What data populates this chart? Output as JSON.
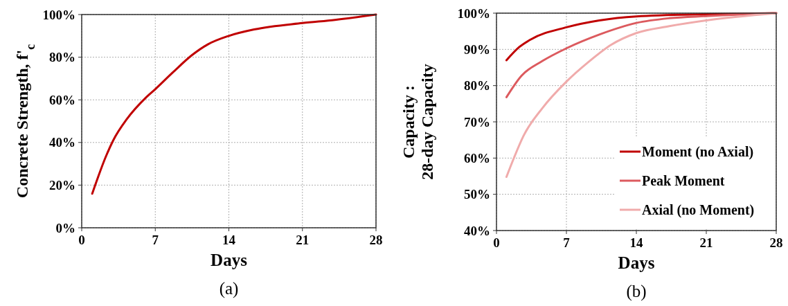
{
  "chart_data": [
    {
      "type": "line",
      "xlabel": "Days",
      "ylabel": "Concrete Strength, f'$_{c}$",
      "annotations": [
        "(a)"
      ],
      "xlim": [
        0,
        28
      ],
      "xticks": [
        0,
        7,
        14,
        21,
        28
      ],
      "ylim": [
        0,
        100
      ],
      "yticks": [
        {
          "value": 0,
          "label": "0%"
        },
        {
          "value": 20,
          "label": "20%"
        },
        {
          "value": 40,
          "label": "40%"
        },
        {
          "value": 60,
          "label": "60%"
        },
        {
          "value": 80,
          "label": "80%"
        },
        {
          "value": 100,
          "label": "100%"
        }
      ],
      "grid": true,
      "legend": false,
      "series": [
        {
          "color": "#c00000",
          "x": [
            1,
            2.35,
            3,
            4.3,
            6.1,
            7,
            8.7,
            10.5,
            12,
            14,
            16.4,
            21,
            24.1,
            28
          ],
          "values": [
            16,
            34,
            41,
            51,
            61,
            65,
            73,
            81,
            86,
            90,
            93,
            96,
            97.5,
            100
          ]
        }
      ]
    },
    {
      "type": "line",
      "xlabel": "Days",
      "ylabel": "Capacity :\n28-day Capacity",
      "annotations": [
        "(b)"
      ],
      "xlim": [
        0,
        28
      ],
      "xticks": [
        0,
        7,
        14,
        21,
        28
      ],
      "ylim": [
        40,
        100
      ],
      "yticks": [
        {
          "value": 40,
          "label": "40%"
        },
        {
          "value": 50,
          "label": "50%"
        },
        {
          "value": 60,
          "label": "60%"
        },
        {
          "value": 70,
          "label": "70%"
        },
        {
          "value": 80,
          "label": "80%"
        },
        {
          "value": 90,
          "label": "90%"
        },
        {
          "value": 100,
          "label": "100%"
        }
      ],
      "grid": true,
      "legend": "bottom right",
      "series": [
        {
          "name": "Moment (no Axial)",
          "color": "#c00000",
          "x": [
            1,
            2.26,
            3.4,
            7,
            10.3,
            14,
            21,
            28
          ],
          "values": [
            87,
            90.6,
            92.7,
            96.1,
            98,
            99.1,
            99.7,
            100
          ]
        },
        {
          "name": "Peak Moment",
          "color": "#dc5a5e",
          "x": [
            1,
            2.5,
            4.6,
            7,
            10.3,
            14,
            17.3,
            21,
            28
          ],
          "values": [
            76.8,
            82.7,
            86.8,
            90.3,
            94.1,
            97.3,
            98.6,
            99.2,
            100
          ]
        },
        {
          "name": "Axial (no Moment)",
          "color": "#f0abab",
          "x": [
            1,
            1.8,
            2.7,
            4.6,
            7,
            9.2,
            11.5,
            14,
            17.3,
            21,
            28
          ],
          "values": [
            54.8,
            60.4,
            66.1,
            73.8,
            81.1,
            86.5,
            91.3,
            94.5,
            96.4,
            98,
            100
          ]
        }
      ]
    }
  ]
}
